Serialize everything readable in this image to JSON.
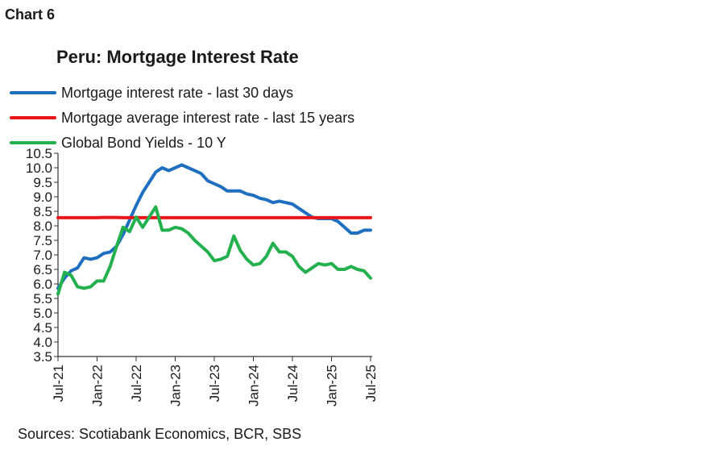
{
  "header": {
    "chart_number": "Chart 6"
  },
  "footer": {
    "sources": "Sources: Scotiabank Economics, BCR, SBS"
  },
  "chart_data": {
    "type": "line",
    "title": "Peru: Mortgage Interest Rate",
    "xlabel": "",
    "ylabel": "",
    "ylim": [
      3.5,
      10.5
    ],
    "yticks": [
      "10.5",
      "10.0",
      "9.5",
      "9.0",
      "8.5",
      "8.0",
      "7.5",
      "7.0",
      "6.5",
      "6.0",
      "5.5",
      "5.0",
      "4.5",
      "4.0",
      "3.5"
    ],
    "xticks": [
      "Jul-21",
      "Jan-22",
      "Jul-22",
      "Jan-23",
      "Jul-23",
      "Jan-24",
      "Jul-24",
      "Jan-25",
      "Jul-25"
    ],
    "x_start": "Jul-21",
    "x_end": "Jul-25",
    "grid": false,
    "legend_position": "top-left",
    "series": [
      {
        "name": "Mortgage interest rate - last 30 days",
        "color": "#1f6fc0",
        "values": [
          5.85,
          6.2,
          6.45,
          6.55,
          6.9,
          6.85,
          6.9,
          7.05,
          7.1,
          7.3,
          7.7,
          8.2,
          8.7,
          9.15,
          9.5,
          9.85,
          10.0,
          9.9,
          10.0,
          10.1,
          10.0,
          9.9,
          9.8,
          9.55,
          9.45,
          9.35,
          9.2,
          9.2,
          9.2,
          9.1,
          9.05,
          8.95,
          8.9,
          8.8,
          8.85,
          8.8,
          8.75,
          8.6,
          8.45,
          8.3,
          8.25,
          8.25,
          8.25,
          8.15,
          7.95,
          7.75,
          7.75,
          7.85,
          7.85
        ]
      },
      {
        "name": "Mortgage average interest rate - last 15 years",
        "color": "#e8151b",
        "values": [
          8.28,
          8.28,
          8.28,
          8.28,
          8.28,
          8.28,
          8.28,
          8.29,
          8.29,
          8.29,
          8.28,
          8.28,
          8.28,
          8.28,
          8.28,
          8.28,
          8.28,
          8.28,
          8.28,
          8.28,
          8.28,
          8.28,
          8.28,
          8.28,
          8.28,
          8.28,
          8.28,
          8.28,
          8.28,
          8.28,
          8.28,
          8.28,
          8.28,
          8.28,
          8.28,
          8.28,
          8.28,
          8.28,
          8.28,
          8.28,
          8.28,
          8.28,
          8.28,
          8.28,
          8.28,
          8.28,
          8.28,
          8.28,
          8.28
        ]
      },
      {
        "name": "Global Bond Yields - 10 Y",
        "color": "#22b14c",
        "values": [
          5.65,
          6.4,
          6.3,
          5.9,
          5.85,
          5.9,
          6.1,
          6.1,
          6.6,
          7.3,
          7.95,
          7.8,
          8.3,
          7.95,
          8.3,
          8.65,
          7.85,
          7.85,
          7.95,
          7.9,
          7.75,
          7.5,
          7.3,
          7.1,
          6.8,
          6.85,
          6.95,
          7.65,
          7.15,
          6.85,
          6.65,
          6.7,
          6.95,
          7.4,
          7.1,
          7.1,
          6.95,
          6.6,
          6.4,
          6.55,
          6.7,
          6.65,
          6.7,
          6.5,
          6.5,
          6.6,
          6.5,
          6.45,
          6.2
        ]
      }
    ]
  }
}
